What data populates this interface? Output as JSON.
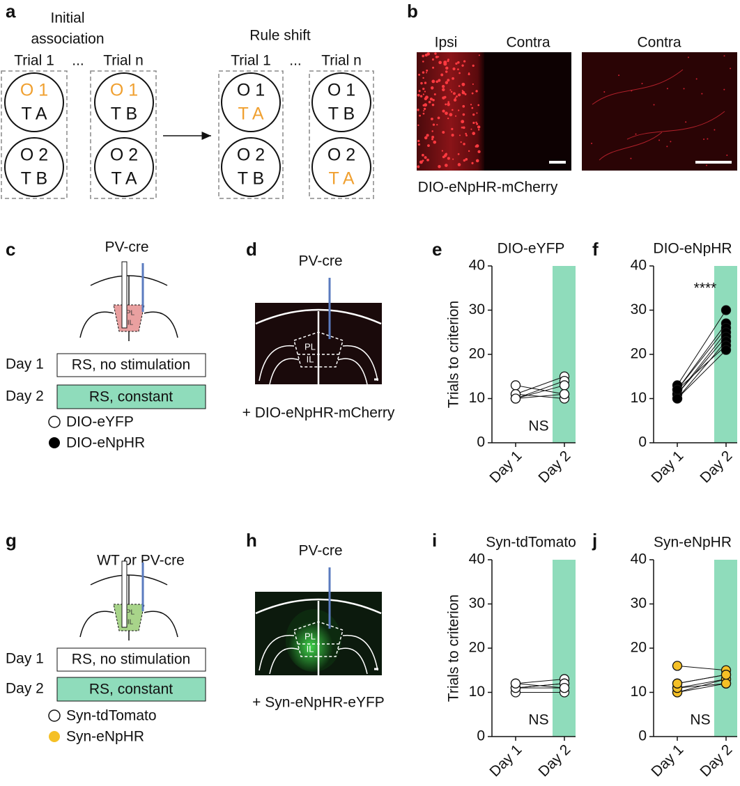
{
  "panel_labels": [
    "a",
    "b",
    "c",
    "d",
    "e",
    "f",
    "g",
    "h",
    "i",
    "j"
  ],
  "a": {
    "initial": [
      "Initial",
      "association"
    ],
    "rule_shift": "Rule shift",
    "ellipsis": [
      "...",
      "..."
    ],
    "columns": [
      {
        "trial": "Trial 1",
        "circles": [
          [
            "O 1",
            "T A"
          ],
          [
            "O 2",
            "T B"
          ]
        ]
      },
      {
        "trial": "Trial n",
        "circles": [
          [
            "O 1",
            "T B"
          ],
          [
            "O 2",
            "T A"
          ]
        ]
      },
      {
        "trial": "Trial 1",
        "circles": [
          [
            "O 1",
            "T A"
          ],
          [
            "O 2",
            "T B"
          ]
        ]
      },
      {
        "trial": "Trial n",
        "circles": [
          [
            "O 1",
            "T B"
          ],
          [
            "O 2",
            "T A"
          ]
        ]
      }
    ]
  },
  "b": {
    "ipsi": "Ipsi",
    "contra": "Contra",
    "contra2": "Contra",
    "caption": "DIO-eNpHR-mCherry"
  },
  "c": {
    "title": "PV-cre",
    "pl": "PL",
    "il": "IL",
    "day1": "Day 1",
    "day1_box": "RS, no stimulation",
    "day2": "Day 2",
    "day2_box": "RS, constant",
    "legend": [
      "DIO-eYFP",
      "DIO-eNpHR"
    ]
  },
  "d": {
    "title": "PV-cre",
    "pl": "PL",
    "il": "IL",
    "caption": "+ DIO-eNpHR-mCherry"
  },
  "g": {
    "title": "WT or PV-cre",
    "pl": "PL",
    "il": "IL",
    "day1": "Day 1",
    "day1_box": "RS, no stimulation",
    "day2": "Day 2",
    "day2_box": "RS, constant",
    "legend": [
      "Syn-tdTomato",
      "Syn-eNpHR"
    ]
  },
  "h": {
    "title": "PV-cre",
    "pl": "PL",
    "il": "IL",
    "caption": "+ Syn-eNpHR-eYFP"
  },
  "chart_data": [
    {
      "type": "line",
      "title": "DIO-eYFP",
      "ylabel": "Trials to criterion",
      "annotation": "NS",
      "categories": [
        "Day 1",
        "Day 2"
      ],
      "marker_color": "#ffffff",
      "band_color": "#8fdcbb",
      "ylim": [
        0,
        40
      ],
      "yticks": [
        0,
        10,
        20,
        30,
        40
      ],
      "series": [
        {
          "values": [
            13,
            11
          ]
        },
        {
          "values": [
            11,
            15
          ]
        },
        {
          "values": [
            10,
            14
          ]
        },
        {
          "values": [
            10,
            13
          ]
        },
        {
          "values": [
            11,
            10
          ]
        },
        {
          "values": [
            10,
            11
          ]
        }
      ]
    },
    {
      "type": "line",
      "title": "DIO-eNpHR",
      "annotation": "****",
      "categories": [
        "Day 1",
        "Day 2"
      ],
      "marker_color": "#000000",
      "band_color": "#8fdcbb",
      "ylim": [
        0,
        40
      ],
      "yticks": [
        0,
        10,
        20,
        30,
        40
      ],
      "series": [
        {
          "values": [
            13,
            30
          ]
        },
        {
          "values": [
            12,
            27
          ]
        },
        {
          "values": [
            12,
            26
          ]
        },
        {
          "values": [
            11,
            25
          ]
        },
        {
          "values": [
            11,
            24
          ]
        },
        {
          "values": [
            10,
            23
          ]
        },
        {
          "values": [
            12,
            22
          ]
        },
        {
          "values": [
            10,
            21
          ]
        }
      ]
    },
    {
      "type": "line",
      "title": "Syn-tdTomato",
      "ylabel": "Trials to criterion",
      "annotation": "NS",
      "categories": [
        "Day 1",
        "Day 2"
      ],
      "marker_color": "#ffffff",
      "band_color": "#8fdcbb",
      "ylim": [
        0,
        40
      ],
      "yticks": [
        0,
        10,
        20,
        30,
        40
      ],
      "series": [
        {
          "values": [
            12,
            13
          ]
        },
        {
          "values": [
            11,
            12
          ]
        },
        {
          "values": [
            11,
            11
          ]
        },
        {
          "values": [
            10,
            10
          ]
        },
        {
          "values": [
            11,
            12
          ]
        },
        {
          "values": [
            12,
            11
          ]
        }
      ]
    },
    {
      "type": "line",
      "title": "Syn-eNpHR",
      "annotation": "NS",
      "categories": [
        "Day 1",
        "Day 2"
      ],
      "marker_color": "#f5c026",
      "band_color": "#8fdcbb",
      "ylim": [
        0,
        40
      ],
      "yticks": [
        0,
        10,
        20,
        30,
        40
      ],
      "series": [
        {
          "values": [
            16,
            15
          ]
        },
        {
          "values": [
            12,
            14
          ]
        },
        {
          "values": [
            11,
            13
          ]
        },
        {
          "values": [
            10,
            12
          ]
        },
        {
          "values": [
            10,
            13
          ]
        },
        {
          "values": [
            11,
            12
          ]
        },
        {
          "values": [
            12,
            14
          ]
        }
      ]
    }
  ]
}
